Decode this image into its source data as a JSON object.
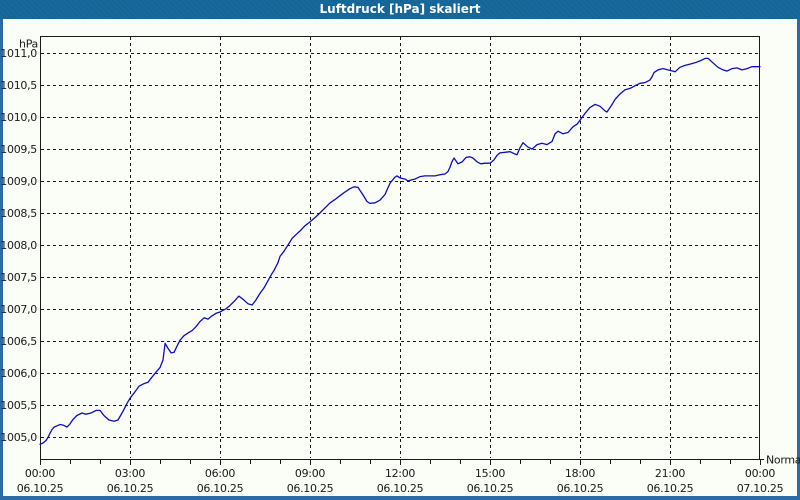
{
  "window": {
    "title": "Luftdruck [hPa] skaliert"
  },
  "colors": {
    "titlebar": "#17689b",
    "frame": "#2c6ba6",
    "plot_background": "#fbfdf7",
    "grid": "#1a1a1a",
    "axis": "#1a1a1a",
    "series": "#0d0dbe",
    "text": "#1b1b1b",
    "title_text": "#ffffff"
  },
  "chart_data": {
    "type": "line",
    "title": "Luftdruck [hPa] skaliert",
    "y_unit_label": "hPa",
    "end_label": "Normal",
    "grid": "dashed",
    "xlim_hours": [
      0,
      24
    ],
    "ylim": [
      1004.65,
      1011.27
    ],
    "y_ticks": [
      {
        "value": 1011.0,
        "label": "1011,0"
      },
      {
        "value": 1010.5,
        "label": "1010,5"
      },
      {
        "value": 1010.0,
        "label": "1010,0"
      },
      {
        "value": 1009.5,
        "label": "1009,5"
      },
      {
        "value": 1009.0,
        "label": "1009,0"
      },
      {
        "value": 1008.5,
        "label": "1008,5"
      },
      {
        "value": 1008.0,
        "label": "1008,0"
      },
      {
        "value": 1007.5,
        "label": "1007,5"
      },
      {
        "value": 1007.0,
        "label": "1007,0"
      },
      {
        "value": 1006.5,
        "label": "1006,5"
      },
      {
        "value": 1006.0,
        "label": "1006,0"
      },
      {
        "value": 1005.5,
        "label": "1005,5"
      },
      {
        "value": 1005.0,
        "label": "1005,0"
      }
    ],
    "x_ticks": [
      {
        "hour": 0,
        "time": "00:00",
        "date": "06.10.25",
        "grid": false
      },
      {
        "hour": 3,
        "time": "03:00",
        "date": "06.10.25",
        "grid": true
      },
      {
        "hour": 6,
        "time": "06:00",
        "date": "06.10.25",
        "grid": true
      },
      {
        "hour": 9,
        "time": "09:00",
        "date": "06.10.25",
        "grid": true
      },
      {
        "hour": 12,
        "time": "12:00",
        "date": "06.10.25",
        "grid": true
      },
      {
        "hour": 15,
        "time": "15:00",
        "date": "06.10.25",
        "grid": true
      },
      {
        "hour": 18,
        "time": "18:00",
        "date": "06.10.25",
        "grid": true
      },
      {
        "hour": 21,
        "time": "21:00",
        "date": "06.10.25",
        "grid": true
      },
      {
        "hour": 24,
        "time": "00:00",
        "date": "07.10.25",
        "grid": false
      }
    ],
    "minor_tick_every_hours": 1,
    "series": [
      {
        "name": "Normal",
        "color": "#0d0dbe",
        "points": [
          [
            0,
            1004.88
          ],
          [
            0.1,
            1004.9
          ],
          [
            0.2,
            1004.94
          ],
          [
            0.27,
            1004.99
          ],
          [
            0.33,
            1005.05
          ],
          [
            0.4,
            1005.11
          ],
          [
            0.47,
            1005.15
          ],
          [
            0.57,
            1005.17
          ],
          [
            0.67,
            1005.19
          ],
          [
            0.77,
            1005.18
          ],
          [
            0.9,
            1005.15
          ],
          [
            1,
            1005.2
          ],
          [
            1.1,
            1005.27
          ],
          [
            1.23,
            1005.33
          ],
          [
            1.4,
            1005.37
          ],
          [
            1.53,
            1005.35
          ],
          [
            1.7,
            1005.37
          ],
          [
            1.87,
            1005.41
          ],
          [
            2,
            1005.41
          ],
          [
            2.13,
            1005.33
          ],
          [
            2.3,
            1005.26
          ],
          [
            2.47,
            1005.24
          ],
          [
            2.6,
            1005.26
          ],
          [
            2.77,
            1005.4
          ],
          [
            2.9,
            1005.52
          ],
          [
            3,
            1005.6
          ],
          [
            3.13,
            1005.68
          ],
          [
            3.3,
            1005.79
          ],
          [
            3.47,
            1005.83
          ],
          [
            3.6,
            1005.85
          ],
          [
            3.73,
            1005.93
          ],
          [
            3.87,
            1006.01
          ],
          [
            4,
            1006.08
          ],
          [
            4.1,
            1006.2
          ],
          [
            4.17,
            1006.46
          ],
          [
            4.27,
            1006.38
          ],
          [
            4.37,
            1006.31
          ],
          [
            4.47,
            1006.32
          ],
          [
            4.57,
            1006.42
          ],
          [
            4.67,
            1006.51
          ],
          [
            4.8,
            1006.58
          ],
          [
            4.93,
            1006.62
          ],
          [
            5.07,
            1006.66
          ],
          [
            5.2,
            1006.72
          ],
          [
            5.33,
            1006.8
          ],
          [
            5.47,
            1006.86
          ],
          [
            5.6,
            1006.84
          ],
          [
            5.73,
            1006.89
          ],
          [
            5.87,
            1006.93
          ],
          [
            6,
            1006.95
          ],
          [
            6.07,
            1006.97
          ],
          [
            6.2,
            1007
          ],
          [
            6.33,
            1007.05
          ],
          [
            6.5,
            1007.13
          ],
          [
            6.63,
            1007.2
          ],
          [
            6.77,
            1007.15
          ],
          [
            6.93,
            1007.08
          ],
          [
            7.07,
            1007.06
          ],
          [
            7.2,
            1007.14
          ],
          [
            7.33,
            1007.24
          ],
          [
            7.47,
            1007.33
          ],
          [
            7.6,
            1007.44
          ],
          [
            7.73,
            1007.55
          ],
          [
            7.8,
            1007.6
          ],
          [
            7.93,
            1007.72
          ],
          [
            8,
            1007.82
          ],
          [
            8.13,
            1007.9
          ],
          [
            8.27,
            1008
          ],
          [
            8.4,
            1008.1
          ],
          [
            8.53,
            1008.16
          ],
          [
            8.67,
            1008.22
          ],
          [
            8.83,
            1008.3
          ],
          [
            9,
            1008.36
          ],
          [
            9.17,
            1008.43
          ],
          [
            9.33,
            1008.5
          ],
          [
            9.5,
            1008.58
          ],
          [
            9.67,
            1008.66
          ],
          [
            9.83,
            1008.71
          ],
          [
            10,
            1008.77
          ],
          [
            10.17,
            1008.83
          ],
          [
            10.33,
            1008.88
          ],
          [
            10.47,
            1008.91
          ],
          [
            10.6,
            1008.9
          ],
          [
            10.77,
            1008.78
          ],
          [
            10.9,
            1008.68
          ],
          [
            11,
            1008.65
          ],
          [
            11.17,
            1008.66
          ],
          [
            11.33,
            1008.7
          ],
          [
            11.5,
            1008.79
          ],
          [
            11.67,
            1008.97
          ],
          [
            11.83,
            1009.06
          ],
          [
            11.9,
            1009.08
          ],
          [
            12,
            1009.05
          ],
          [
            12.17,
            1009.03
          ],
          [
            12.27,
            1009
          ],
          [
            12.4,
            1009.02
          ],
          [
            12.5,
            1009.03
          ],
          [
            12.67,
            1009.07
          ],
          [
            12.83,
            1009.08
          ],
          [
            13,
            1009.08
          ],
          [
            13.17,
            1009.08
          ],
          [
            13.33,
            1009.1
          ],
          [
            13.5,
            1009.11
          ],
          [
            13.6,
            1009.15
          ],
          [
            13.67,
            1009.22
          ],
          [
            13.73,
            1009.3
          ],
          [
            13.8,
            1009.36
          ],
          [
            13.93,
            1009.27
          ],
          [
            14.07,
            1009.3
          ],
          [
            14.2,
            1009.37
          ],
          [
            14.33,
            1009.38
          ],
          [
            14.43,
            1009.36
          ],
          [
            14.57,
            1009.3
          ],
          [
            14.7,
            1009.27
          ],
          [
            14.83,
            1009.28
          ],
          [
            15,
            1009.28
          ],
          [
            15.13,
            1009.33
          ],
          [
            15.23,
            1009.4
          ],
          [
            15.33,
            1009.44
          ],
          [
            15.5,
            1009.45
          ],
          [
            15.67,
            1009.46
          ],
          [
            15.8,
            1009.43
          ],
          [
            15.9,
            1009.41
          ],
          [
            16,
            1009.52
          ],
          [
            16.1,
            1009.6
          ],
          [
            16.27,
            1009.53
          ],
          [
            16.4,
            1009.5
          ],
          [
            16.57,
            1009.57
          ],
          [
            16.73,
            1009.59
          ],
          [
            16.9,
            1009.57
          ],
          [
            17.07,
            1009.62
          ],
          [
            17.17,
            1009.74
          ],
          [
            17.27,
            1009.78
          ],
          [
            17.43,
            1009.74
          ],
          [
            17.6,
            1009.76
          ],
          [
            17.77,
            1009.85
          ],
          [
            17.9,
            1009.89
          ],
          [
            18,
            1009.95
          ],
          [
            18.17,
            1010.06
          ],
          [
            18.33,
            1010.15
          ],
          [
            18.5,
            1010.2
          ],
          [
            18.67,
            1010.17
          ],
          [
            18.83,
            1010.1
          ],
          [
            18.9,
            1010.08
          ],
          [
            19.07,
            1010.2
          ],
          [
            19.17,
            1010.28
          ],
          [
            19.33,
            1010.36
          ],
          [
            19.5,
            1010.43
          ],
          [
            19.67,
            1010.45
          ],
          [
            19.83,
            1010.49
          ],
          [
            20,
            1010.53
          ],
          [
            20.17,
            1010.54
          ],
          [
            20.33,
            1010.58
          ],
          [
            20.4,
            1010.63
          ],
          [
            20.47,
            1010.7
          ],
          [
            20.6,
            1010.74
          ],
          [
            20.77,
            1010.76
          ],
          [
            20.93,
            1010.74
          ],
          [
            21.1,
            1010.72
          ],
          [
            21.17,
            1010.71
          ],
          [
            21.33,
            1010.78
          ],
          [
            21.5,
            1010.81
          ],
          [
            21.67,
            1010.83
          ],
          [
            21.83,
            1010.85
          ],
          [
            22,
            1010.88
          ],
          [
            22.17,
            1010.92
          ],
          [
            22.27,
            1010.92
          ],
          [
            22.43,
            1010.85
          ],
          [
            22.6,
            1010.78
          ],
          [
            22.77,
            1010.74
          ],
          [
            22.9,
            1010.72
          ],
          [
            23.07,
            1010.76
          ],
          [
            23.23,
            1010.77
          ],
          [
            23.4,
            1010.74
          ],
          [
            23.57,
            1010.76
          ],
          [
            23.73,
            1010.79
          ],
          [
            24,
            1010.79
          ]
        ]
      }
    ]
  }
}
